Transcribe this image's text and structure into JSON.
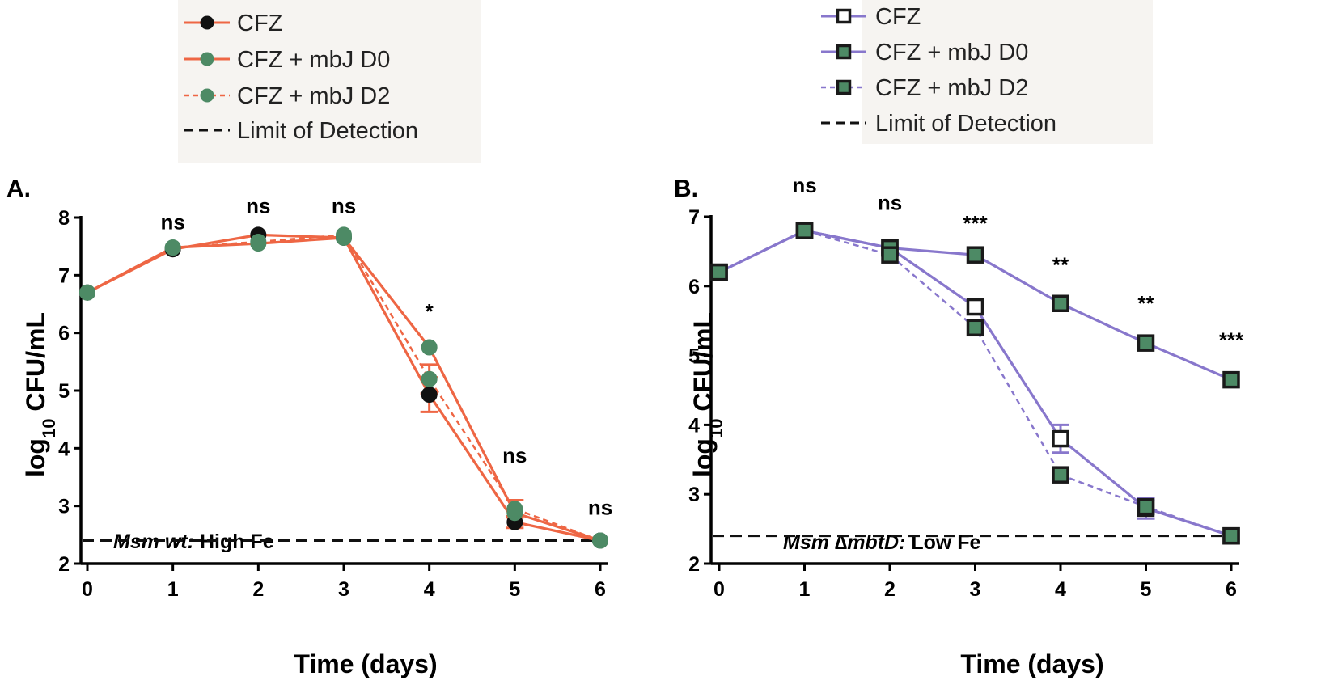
{
  "colors": {
    "orange": "#ee6644",
    "purple": "#8877cc",
    "green": "#4d8a65",
    "black": "#111111",
    "lod": "#111111"
  },
  "chart_data": [
    {
      "panel": "A.",
      "type": "line",
      "title": "",
      "xlabel": "Time (days)",
      "ylabel": "log10 CFU/mL",
      "ylabel_parts": {
        "main": "log",
        "sub": "10",
        "rest": " CFU/mL"
      },
      "xlim": [
        0,
        6
      ],
      "ylim": [
        2,
        8
      ],
      "x_ticks": [
        0,
        1,
        2,
        3,
        4,
        5,
        6
      ],
      "y_ticks": [
        2,
        3,
        4,
        5,
        6,
        7,
        8
      ],
      "annotation": {
        "italic": "Msm wt:",
        "plain": " High Fe"
      },
      "limit_of_detection": 2.4,
      "legend": [
        "CFZ",
        "CFZ + mbJ D0",
        "CFZ + mbJ D2",
        "Limit of Detection"
      ],
      "x": [
        0,
        1,
        2,
        3,
        4,
        5,
        6
      ],
      "series": [
        {
          "name": "CFZ",
          "line": "solid",
          "marker": "circle-black",
          "values": [
            6.7,
            7.45,
            7.7,
            7.65,
            4.93,
            2.72,
            2.4
          ],
          "errors": [
            0,
            0,
            0,
            0,
            0.3,
            0.1,
            0
          ]
        },
        {
          "name": "CFZ + mbJ D0",
          "line": "solid",
          "marker": "circle-green",
          "values": [
            6.7,
            7.48,
            7.55,
            7.65,
            5.75,
            2.88,
            2.4
          ],
          "errors": [
            0,
            0,
            0,
            0,
            0,
            0,
            0
          ]
        },
        {
          "name": "CFZ + mbJ D2",
          "line": "dashed",
          "marker": "circle-green",
          "values": [
            6.7,
            7.48,
            7.58,
            7.7,
            5.2,
            2.95,
            2.4
          ],
          "errors": [
            0,
            0,
            0,
            0,
            0.25,
            0.15,
            0
          ]
        }
      ],
      "significance": [
        {
          "x": 1,
          "y": 7.8,
          "label": "ns"
        },
        {
          "x": 2,
          "y": 8.08,
          "label": "ns"
        },
        {
          "x": 3,
          "y": 8.08,
          "label": "ns"
        },
        {
          "x": 4,
          "y": 6.25,
          "label": "*"
        },
        {
          "x": 5,
          "y": 3.75,
          "label": "ns"
        },
        {
          "x": 6,
          "y": 2.85,
          "label": "ns"
        }
      ]
    },
    {
      "panel": "B.",
      "type": "line",
      "title": "",
      "xlabel": "Time (days)",
      "ylabel": "log10 CFU/mL",
      "ylabel_parts": {
        "main": "log",
        "sub": "10",
        "rest": " CFU/mL"
      },
      "xlim": [
        0,
        6
      ],
      "ylim": [
        2,
        7
      ],
      "x_ticks": [
        0,
        1,
        2,
        3,
        4,
        5,
        6
      ],
      "y_ticks": [
        2,
        3,
        4,
        5,
        6,
        7
      ],
      "annotation": {
        "italic": "Msm ∆mbtD:",
        "plain": " Low Fe"
      },
      "limit_of_detection": 2.4,
      "legend": [
        "CFZ",
        "CFZ + mbJ D0",
        "CFZ + mbJ D2",
        "Limit of Detection"
      ],
      "x": [
        0,
        1,
        2,
        3,
        4,
        5,
        6
      ],
      "series": [
        {
          "name": "CFZ",
          "line": "solid",
          "marker": "square-open",
          "values": [
            6.2,
            6.8,
            6.55,
            5.7,
            3.8,
            2.8,
            2.4
          ],
          "errors": [
            0,
            0,
            0,
            0,
            0.2,
            0.15,
            0
          ]
        },
        {
          "name": "CFZ + mbJ D0",
          "line": "solid",
          "marker": "square-green",
          "values": [
            6.2,
            6.8,
            6.55,
            6.45,
            5.75,
            5.18,
            4.65
          ],
          "errors": [
            0,
            0,
            0,
            0,
            0,
            0,
            0
          ]
        },
        {
          "name": "CFZ + mbJ D2",
          "line": "dashed",
          "marker": "square-green",
          "values": [
            6.2,
            6.8,
            6.45,
            5.4,
            3.28,
            2.82,
            2.4
          ],
          "errors": [
            0,
            0,
            0,
            0,
            0.1,
            0.1,
            0
          ]
        }
      ],
      "significance": [
        {
          "x": 1,
          "y": 7.35,
          "label": "ns"
        },
        {
          "x": 2,
          "y": 7.1,
          "label": "ns"
        },
        {
          "x": 3,
          "y": 6.8,
          "label": "***"
        },
        {
          "x": 4,
          "y": 6.2,
          "label": "**"
        },
        {
          "x": 5,
          "y": 5.65,
          "label": "**"
        },
        {
          "x": 6,
          "y": 5.12,
          "label": "***"
        }
      ]
    }
  ]
}
